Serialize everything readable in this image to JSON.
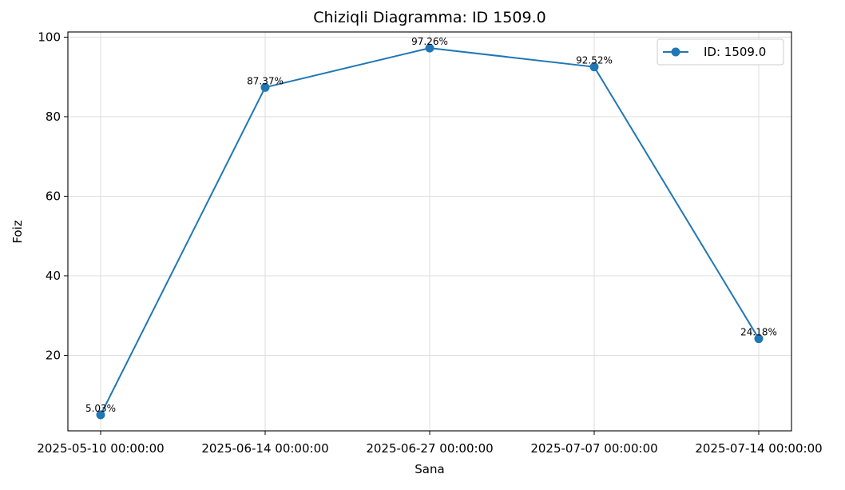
{
  "chart_data": {
    "type": "line",
    "title": "Chiziqli Diagramma: ID 1509.0",
    "xlabel": "Sana",
    "ylabel": "Foiz",
    "categories": [
      "2025-05-10 00:00:00",
      "2025-06-14 00:00:00",
      "2025-06-27 00:00:00",
      "2025-07-07 00:00:00",
      "2025-07-14 00:00:00"
    ],
    "series": [
      {
        "name": "ID: 1509.0",
        "color": "#1f77b4",
        "values": [
          5.03,
          87.37,
          97.26,
          92.52,
          24.18
        ],
        "data_labels": [
          "5.03%",
          "87.37%",
          "97.26%",
          "92.52%",
          "24.18%"
        ]
      }
    ],
    "yticks": [
      20,
      40,
      60,
      80,
      100
    ],
    "ylim": [
      1.0,
      101.3
    ],
    "grid": true,
    "legend_position": "top-right",
    "x_axis_note": "categories placed at equal spacing"
  }
}
